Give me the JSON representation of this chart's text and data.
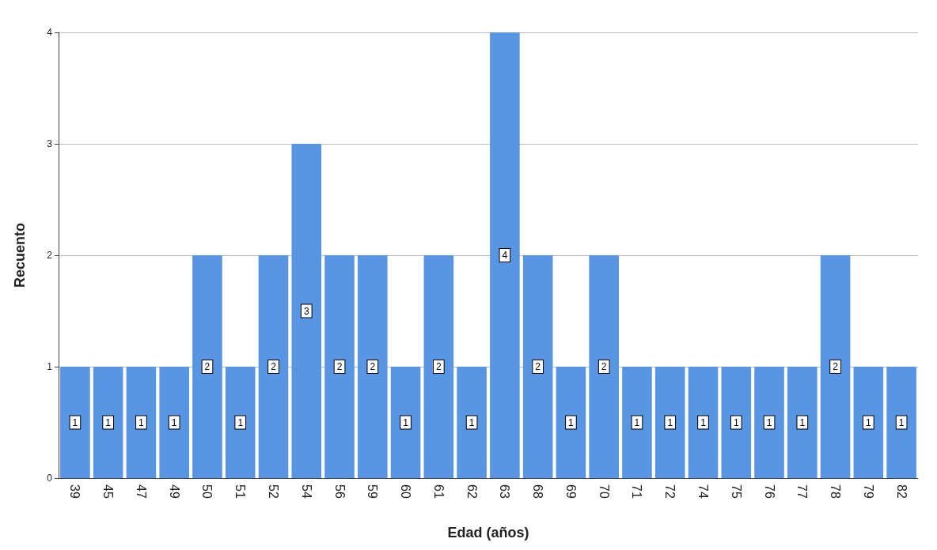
{
  "chart_data": {
    "type": "bar",
    "xlabel": "Edad (años)",
    "ylabel": "Recuento",
    "categories": [
      "39",
      "45",
      "47",
      "49",
      "50",
      "51",
      "52",
      "54",
      "56",
      "59",
      "60",
      "61",
      "62",
      "63",
      "68",
      "69",
      "70",
      "71",
      "72",
      "74",
      "75",
      "76",
      "77",
      "78",
      "79",
      "82"
    ],
    "values": [
      1,
      1,
      1,
      1,
      2,
      1,
      2,
      3,
      2,
      2,
      1,
      2,
      1,
      4,
      2,
      1,
      2,
      1,
      1,
      1,
      1,
      1,
      1,
      2,
      1,
      1
    ],
    "color": "#5896e4",
    "ylim": [
      0,
      4
    ],
    "yticks": [
      0,
      1,
      2,
      3,
      4
    ],
    "grid": "y",
    "data_labels": true
  }
}
